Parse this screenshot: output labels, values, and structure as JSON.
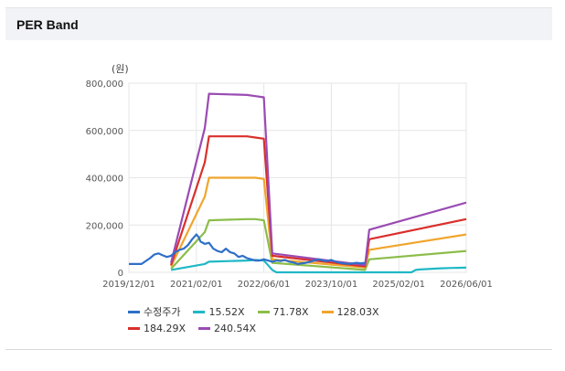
{
  "header": {
    "title": "PER Band"
  },
  "chart_data": {
    "type": "line",
    "unit_label": "(원)",
    "ylim": [
      0,
      800000
    ],
    "y_ticks": [
      "800,000",
      "600,000",
      "400,000",
      "200,000",
      "0"
    ],
    "y_tick_values": [
      800000,
      600000,
      400000,
      200000,
      0
    ],
    "x_ticks": [
      "2019/12/01",
      "2021/02/01",
      "2022/06/01",
      "2023/10/01",
      "2025/02/01",
      "2026/06/01"
    ],
    "x_range_months": [
      0,
      80
    ],
    "grid": true,
    "series": [
      {
        "name": "수정주가",
        "color": "#2f6fc8",
        "x": [
          0,
          3,
          5,
          6,
          7,
          8,
          9,
          10,
          11,
          12,
          13,
          14,
          15,
          16,
          16.5,
          17,
          18,
          19,
          20,
          21,
          22,
          23,
          24,
          25,
          26,
          27,
          28,
          29,
          30,
          31,
          32,
          33,
          34,
          35,
          36,
          37,
          38,
          39,
          40,
          41,
          42,
          43,
          44,
          45,
          46,
          47,
          48,
          49,
          50,
          51,
          52,
          53,
          54,
          55,
          56
        ],
        "y": [
          35000,
          35000,
          60000,
          75000,
          80000,
          72000,
          65000,
          70000,
          85000,
          95000,
          100000,
          115000,
          140000,
          160000,
          150000,
          130000,
          120000,
          125000,
          100000,
          90000,
          85000,
          100000,
          85000,
          80000,
          65000,
          70000,
          60000,
          55000,
          50000,
          50000,
          55000,
          50000,
          45000,
          50000,
          48000,
          52000,
          45000,
          42000,
          35000,
          38000,
          40000,
          45000,
          50000,
          55000,
          50000,
          48000,
          52000,
          45000,
          40000,
          38000,
          35000,
          38000,
          40000,
          38000,
          40000
        ]
      },
      {
        "name": "15.52X",
        "color": "#1fb8c6",
        "x": [
          10,
          18,
          19,
          28,
          30,
          32,
          33,
          34,
          35,
          36,
          37,
          38,
          39,
          40,
          41,
          42,
          43,
          44,
          45,
          46,
          47,
          48,
          49,
          50,
          51,
          52,
          53,
          54,
          55,
          56,
          57,
          58,
          59,
          60,
          61,
          62,
          63,
          64,
          65,
          66,
          67,
          68,
          69,
          70,
          71,
          72,
          73,
          74,
          75,
          76,
          77,
          78,
          79,
          80
        ],
        "y": [
          10000,
          35000,
          45000,
          50000,
          52000,
          50000,
          30000,
          10000,
          0,
          0,
          0,
          0,
          0,
          0,
          0,
          0,
          0,
          0,
          0,
          0,
          0,
          0,
          0,
          0,
          0,
          0,
          0,
          0,
          0,
          0,
          0,
          0,
          0,
          0,
          0,
          0,
          0,
          0,
          0,
          0,
          0,
          10000,
          12000,
          13000,
          14000,
          15000,
          16000,
          17000,
          17500,
          18000,
          18500,
          19000,
          19500,
          20000
        ]
      },
      {
        "name": "71.78X",
        "color": "#8bbd4a",
        "x": [
          10,
          18,
          19,
          28,
          30,
          32,
          34,
          56,
          57,
          80
        ],
        "y": [
          15000,
          170000,
          220000,
          225000,
          225000,
          220000,
          40000,
          10000,
          55000,
          90000
        ]
      },
      {
        "name": "128.03X",
        "color": "#f0a52c",
        "x": [
          10,
          18,
          19,
          28,
          30,
          32,
          34,
          56,
          57,
          80
        ],
        "y": [
          25000,
          320000,
          400000,
          400000,
          400000,
          395000,
          55000,
          20000,
          95000,
          160000
        ]
      },
      {
        "name": "184.29X",
        "color": "#d9302c",
        "x": [
          10,
          18,
          19,
          28,
          30,
          32,
          34,
          56,
          57,
          80
        ],
        "y": [
          30000,
          465000,
          575000,
          575000,
          570000,
          565000,
          70000,
          25000,
          140000,
          225000
        ]
      },
      {
        "name": "240.54X",
        "color": "#9a4bb3",
        "x": [
          10,
          18,
          19,
          28,
          30,
          32,
          34,
          56,
          57,
          80
        ],
        "y": [
          40000,
          610000,
          755000,
          750000,
          745000,
          740000,
          80000,
          30000,
          180000,
          295000
        ]
      }
    ]
  }
}
